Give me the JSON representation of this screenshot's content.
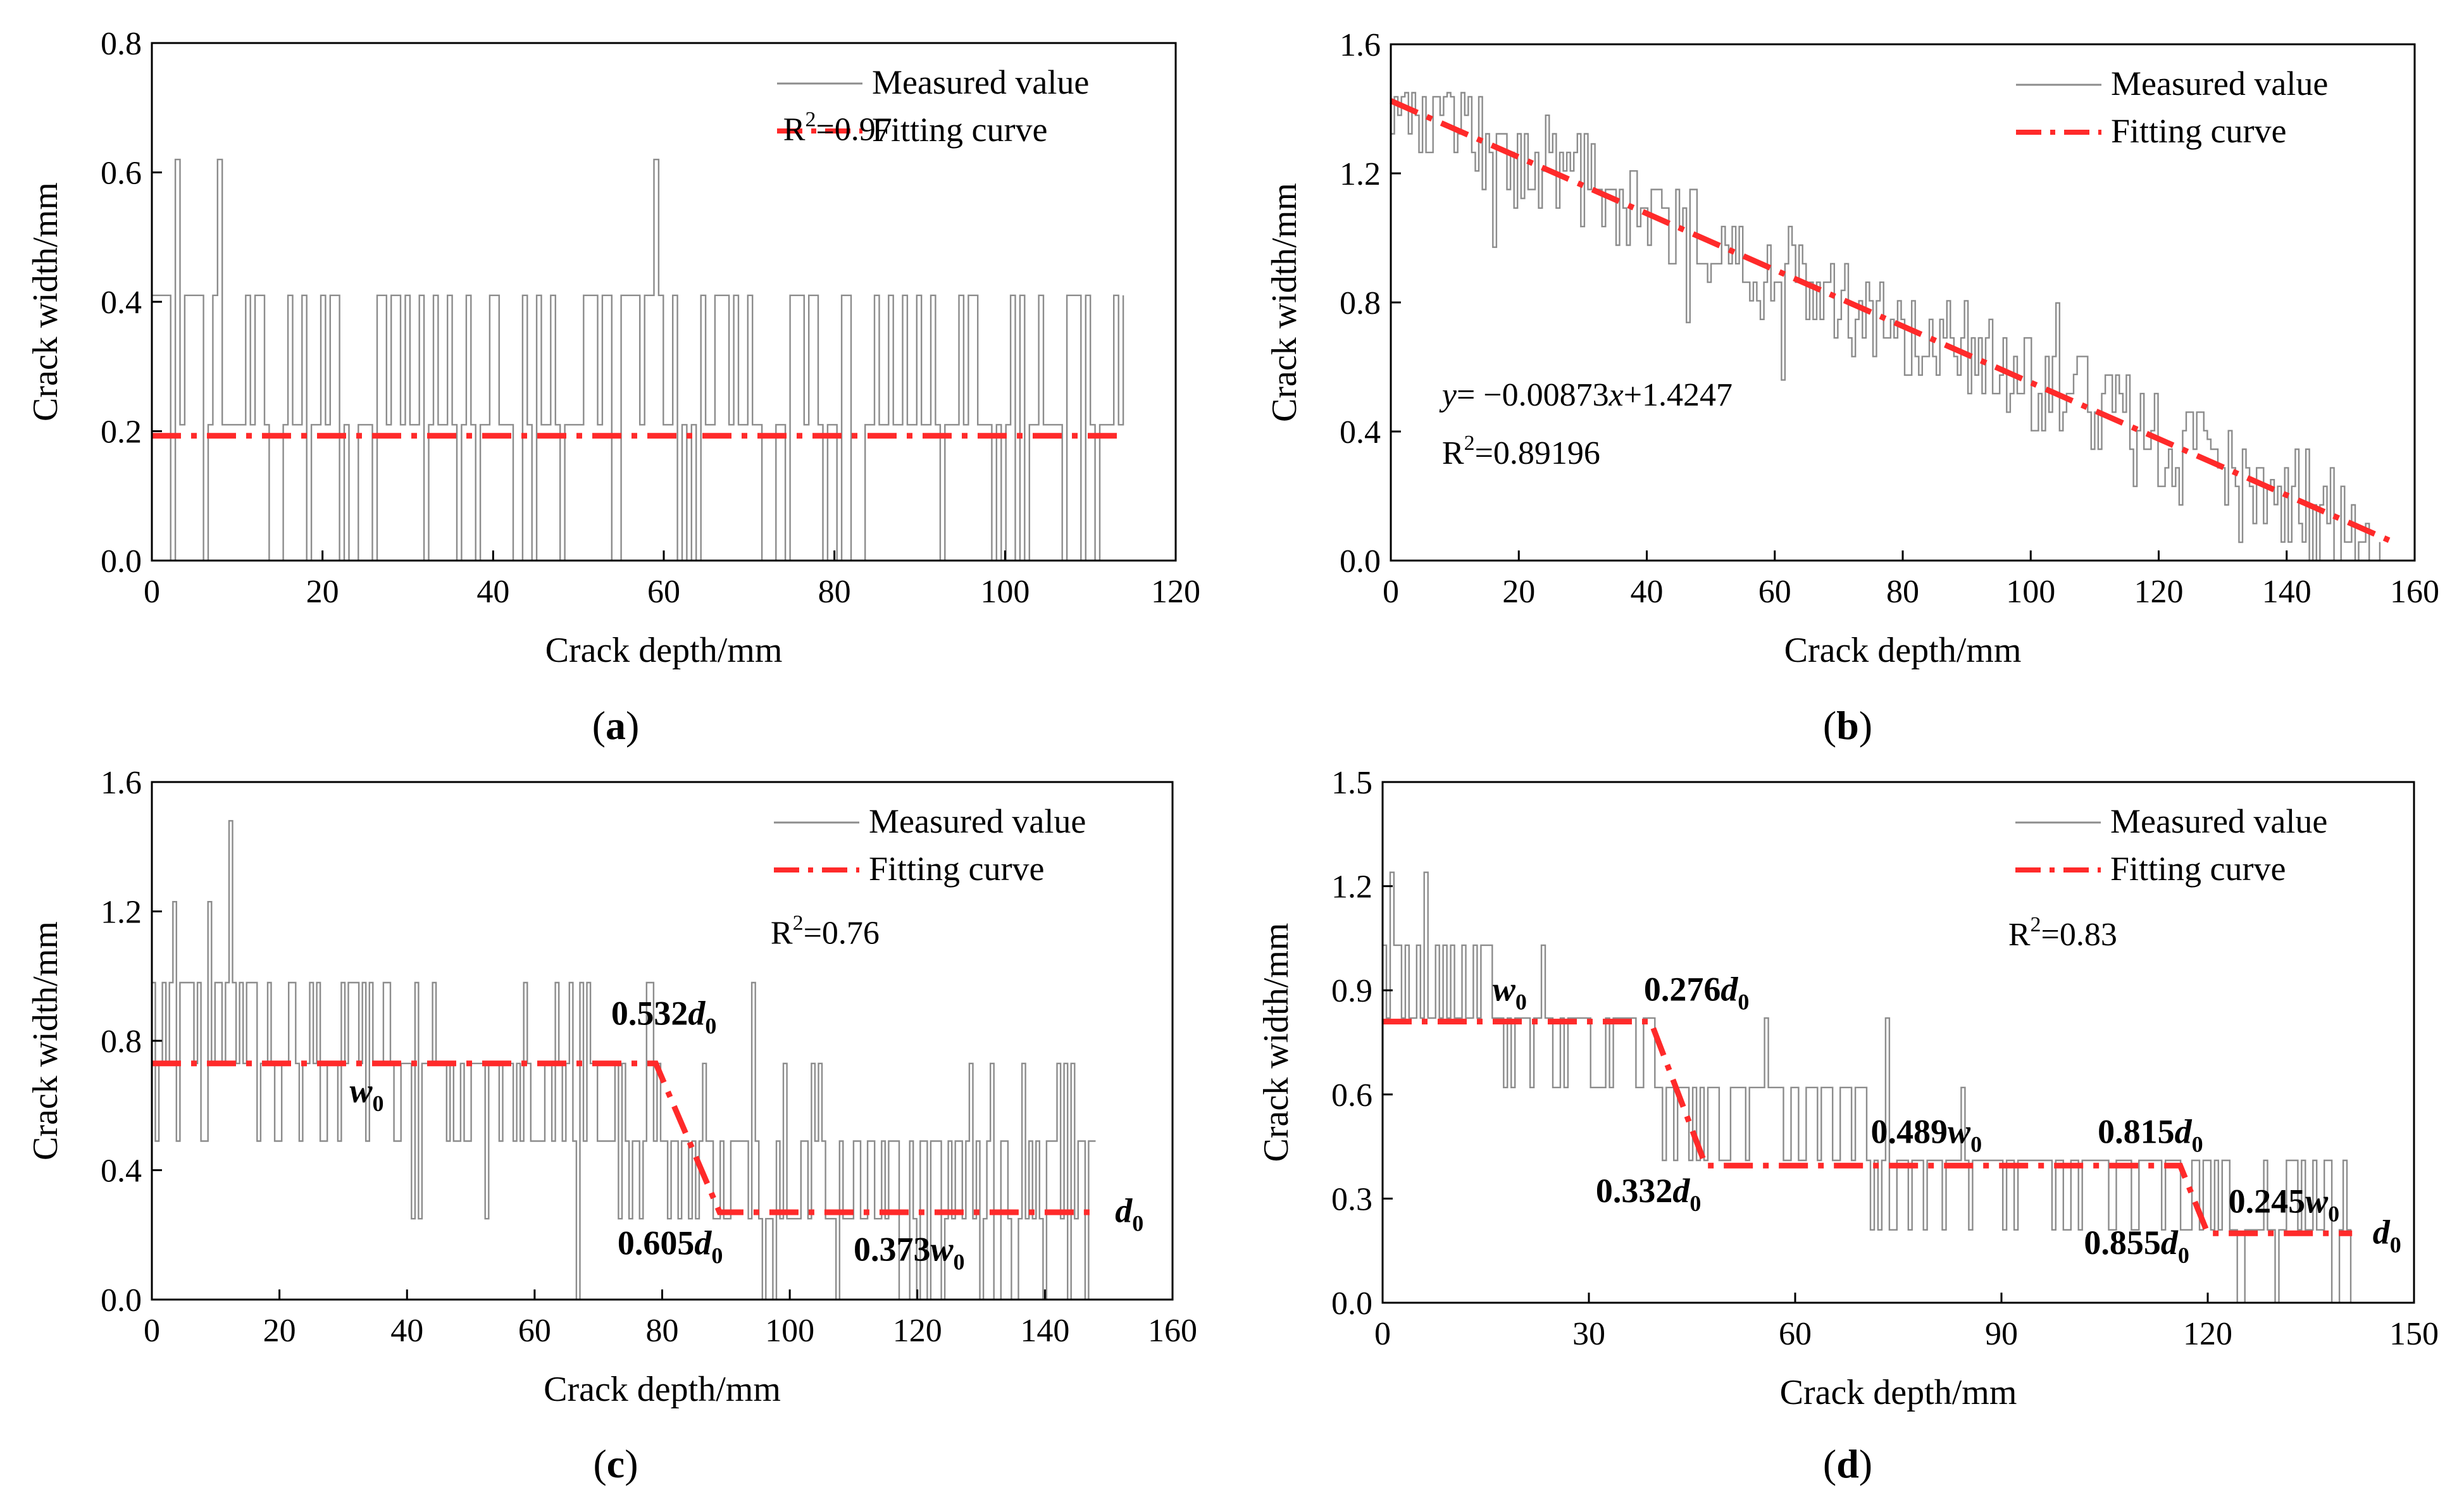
{
  "chart_data": [
    {
      "panel": "a",
      "type": "line",
      "panel_label": "a",
      "xlabel": "Crack depth/mm",
      "ylabel": "Crack width/mm",
      "xlim": [
        0,
        120
      ],
      "ylim": [
        0,
        0.8
      ],
      "xticks": [
        0,
        20,
        40,
        60,
        80,
        100,
        120
      ],
      "yticks": [
        0.0,
        0.2,
        0.4,
        0.6,
        0.8
      ],
      "tick_decimals_y": 1,
      "legend": {
        "position": "top-right",
        "measured": "Measured value",
        "fitting": "Fitting curve"
      },
      "colors": {
        "measured": "#8c8c8c",
        "fitting": "#ff2a2a"
      },
      "measured": {
        "x_max": 114,
        "levels": [
          0.0,
          0.21,
          0.41
        ],
        "spikes": [
          [
            2.6,
            0.62
          ],
          [
            7.5,
            0.62
          ],
          [
            58.5,
            0.62
          ]
        ],
        "seed": 11
      },
      "fitting": {
        "x": [
          0,
          114
        ],
        "y": [
          0.193,
          0.193
        ]
      },
      "annotations": [
        {
          "kind": "r2",
          "base": "R",
          "exp": "2",
          "rest": "=0.97",
          "x": 74,
          "y": 0.65
        }
      ]
    },
    {
      "panel": "b",
      "type": "line",
      "panel_label": "b",
      "xlabel": "Crack depth/mm",
      "ylabel": "Crack width/mm",
      "xlim": [
        0,
        160
      ],
      "ylim": [
        0,
        1.6
      ],
      "xticks": [
        0,
        20,
        40,
        60,
        80,
        100,
        120,
        140,
        160
      ],
      "yticks": [
        0.0,
        0.4,
        0.8,
        1.2,
        1.6
      ],
      "tick_decimals_y": 1,
      "legend": {
        "position": "top-right",
        "measured": "Measured value",
        "fitting": "Fitting curve"
      },
      "colors": {
        "measured": "#8c8c8c",
        "fitting": "#ff2a2a"
      },
      "measured": {
        "x_max": 155,
        "trend": {
          "slope": -0.00873,
          "intercept": 1.4247
        },
        "noise": 0.16,
        "seed": 23
      },
      "fitting": {
        "x": [
          0,
          156
        ],
        "y": [
          1.4247,
          0.063
        ]
      },
      "annotations": [
        {
          "kind": "equation",
          "italic_y": "y",
          "text_mid": "= −0.00873",
          "italic_x": "x",
          "text_end": "+1.4247",
          "x": 8,
          "y": 0.48
        },
        {
          "kind": "r2",
          "base": "R",
          "exp": "2",
          "rest": "=0.89196",
          "x": 8,
          "y": 0.3
        }
      ]
    },
    {
      "panel": "c",
      "type": "line",
      "panel_label": "c",
      "xlabel": "Crack depth/mm",
      "ylabel": "Crack width/mm",
      "xlim": [
        0,
        160
      ],
      "ylim": [
        0,
        1.6
      ],
      "xticks": [
        0,
        20,
        40,
        60,
        80,
        100,
        120,
        140,
        160
      ],
      "yticks": [
        0.0,
        0.4,
        0.8,
        1.2,
        1.6
      ],
      "tick_decimals_y": 1,
      "legend": {
        "position": "top-right",
        "measured": "Measured value",
        "fitting": "Fitting curve"
      },
      "colors": {
        "measured": "#8c8c8c",
        "fitting": "#ff2a2a"
      },
      "measured": {
        "x_max": 148,
        "segments": [
          {
            "x0": 0,
            "x1": 37,
            "levels": [
              0.73,
              0.98,
              0.49
            ]
          },
          {
            "x0": 37,
            "x1": 79,
            "levels": [
              0.73,
              0.49,
              0.98,
              0.25
            ]
          },
          {
            "x0": 79,
            "x1": 91,
            "levels": [
              0.49,
              0.25,
              0.73
            ]
          },
          {
            "x0": 91,
            "x1": 148,
            "levels": [
              0.25,
              0.49,
              0.0,
              0.73
            ]
          }
        ],
        "spikes": [
          [
            3,
            1.23
          ],
          [
            8.5,
            1.23
          ],
          [
            12,
            1.48
          ],
          [
            94,
            0.98
          ],
          [
            66,
            0.0
          ]
        ],
        "seed": 37
      },
      "fitting": {
        "x": [
          0,
          79,
          89,
          148
        ],
        "y": [
          0.73,
          0.73,
          0.27,
          0.27
        ]
      },
      "annotations": [
        {
          "kind": "coef",
          "coef": "0.532",
          "sym": "d",
          "sub": "0",
          "x": 72,
          "y": 0.85
        },
        {
          "kind": "coef",
          "coef": "",
          "sym": "w",
          "sub": "0",
          "x": 31,
          "y": 0.61
        },
        {
          "kind": "coef",
          "coef": "0.605",
          "sym": "d",
          "sub": "0",
          "x": 73,
          "y": 0.14
        },
        {
          "kind": "coef",
          "coef": "0.373",
          "sym": "w",
          "sub": "0",
          "x": 110,
          "y": 0.12
        },
        {
          "kind": "coef",
          "coef": "",
          "sym": "d",
          "sub": "0",
          "x": 151,
          "y": 0.24
        },
        {
          "kind": "r2",
          "base": "R",
          "exp": "2",
          "rest": "=0.76",
          "x": 97,
          "y": 1.1
        }
      ]
    },
    {
      "panel": "d",
      "type": "line",
      "panel_label": "d",
      "xlabel": "Crack depth/mm",
      "ylabel": "Crack width/mm",
      "xlim": [
        0,
        150
      ],
      "ylim": [
        0,
        1.5
      ],
      "xticks": [
        0,
        30,
        60,
        90,
        120,
        150
      ],
      "yticks": [
        0.0,
        0.3,
        0.6,
        0.9,
        1.2,
        1.5
      ],
      "tick_decimals_y": 1,
      "legend": {
        "position": "top-right",
        "measured": "Measured value",
        "fitting": "Fitting curve"
      },
      "colors": {
        "measured": "#8c8c8c",
        "fitting": "#ff2a2a"
      },
      "measured": {
        "x_max": 141,
        "segments": [
          {
            "x0": 0,
            "x1": 16,
            "levels": [
              1.03,
              0.82,
              1.03
            ]
          },
          {
            "x0": 16,
            "x1": 40,
            "levels": [
              0.82,
              0.62,
              0.82
            ]
          },
          {
            "x0": 40,
            "x1": 70,
            "levels": [
              0.62,
              0.41,
              0.62
            ]
          },
          {
            "x0": 70,
            "x1": 120,
            "levels": [
              0.41,
              0.21,
              0.41
            ]
          },
          {
            "x0": 120,
            "x1": 141,
            "levels": [
              0.21,
              0.41,
              0.0
            ]
          }
        ],
        "spikes": [
          [
            1,
            1.24
          ],
          [
            6,
            1.24
          ],
          [
            23,
            1.03
          ],
          [
            55,
            0.82
          ],
          [
            73,
            0.82
          ],
          [
            84,
            0.62
          ]
        ],
        "seed": 53
      },
      "fitting": {
        "x": [
          0,
          39,
          47,
          116,
          120,
          141
        ],
        "y": [
          0.81,
          0.81,
          0.395,
          0.395,
          0.2,
          0.2
        ]
      },
      "annotations": [
        {
          "kind": "coef",
          "coef": "",
          "sym": "w",
          "sub": "0",
          "x": 16,
          "y": 0.87
        },
        {
          "kind": "coef",
          "coef": "0.276",
          "sym": "d",
          "sub": "0",
          "x": 38,
          "y": 0.87
        },
        {
          "kind": "coef",
          "coef": "0.332",
          "sym": "d",
          "sub": "0",
          "x": 31,
          "y": 0.29
        },
        {
          "kind": "coef",
          "coef": "0.489",
          "sym": "w",
          "sub": "0",
          "x": 71,
          "y": 0.46
        },
        {
          "kind": "coef",
          "coef": "0.815",
          "sym": "d",
          "sub": "0",
          "x": 104,
          "y": 0.46
        },
        {
          "kind": "coef",
          "coef": "0.855",
          "sym": "d",
          "sub": "0",
          "x": 102,
          "y": 0.14
        },
        {
          "kind": "coef",
          "coef": "0.245",
          "sym": "w",
          "sub": "0",
          "x": 123,
          "y": 0.26
        },
        {
          "kind": "coef",
          "coef": "",
          "sym": "d",
          "sub": "0",
          "x": 144,
          "y": 0.17
        },
        {
          "kind": "r2",
          "base": "R",
          "exp": "2",
          "rest": "=0.83",
          "x": 91,
          "y": 1.03
        }
      ]
    }
  ]
}
